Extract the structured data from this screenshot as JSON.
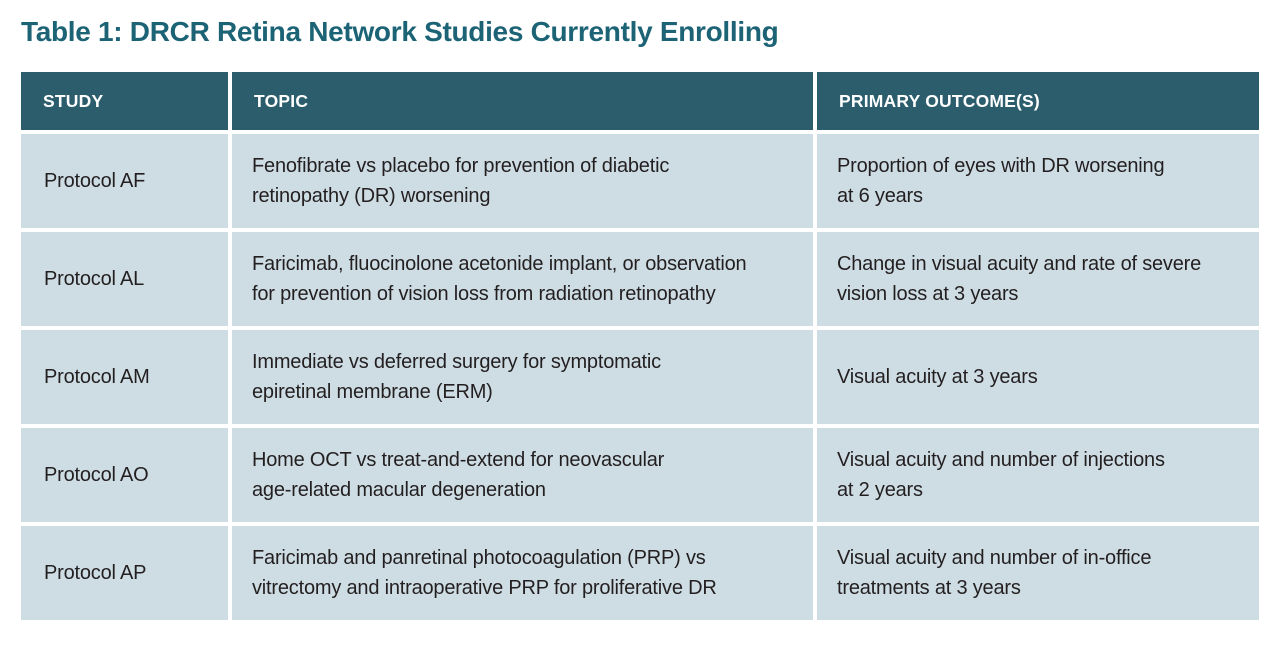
{
  "title": "Table 1: DRCR Retina Network Studies Currently Enrolling",
  "colors": {
    "title_teal": "#1d6376",
    "header_bg": "#2b5d6c",
    "header_text": "#ffffff",
    "row_bg": "#cedde4",
    "cell_text": "#231f20"
  },
  "table": {
    "headers": [
      "STUDY",
      "TOPIC",
      "PRIMARY OUTCOME(S)"
    ],
    "rows": [
      {
        "study": "Protocol AF",
        "topic": "Fenofibrate vs placebo for prevention of diabetic\nretinopathy (DR) worsening",
        "outcome": "Proportion of eyes with DR worsening\nat 6 years"
      },
      {
        "study": "Protocol AL",
        "topic": "Faricimab, fluocinolone acetonide implant, or observation\nfor prevention of vision loss from radiation retinopathy",
        "outcome": "Change in visual acuity and rate of severe\nvision loss at 3 years"
      },
      {
        "study": "Protocol AM",
        "topic": "Immediate vs deferred surgery for symptomatic\nepiretinal membrane (ERM)",
        "outcome": "Visual acuity at 3 years"
      },
      {
        "study": "Protocol AO",
        "topic": "Home OCT vs treat-and-extend for neovascular\nage-related macular degeneration",
        "outcome": "Visual acuity and number of injections\nat 2 years"
      },
      {
        "study": "Protocol AP",
        "topic": "Faricimab and panretinal photocoagulation (PRP) vs\nvitrectomy and intraoperative PRP for proliferative DR",
        "outcome": "Visual acuity and number of in-office\ntreatments at 3 years"
      }
    ]
  }
}
